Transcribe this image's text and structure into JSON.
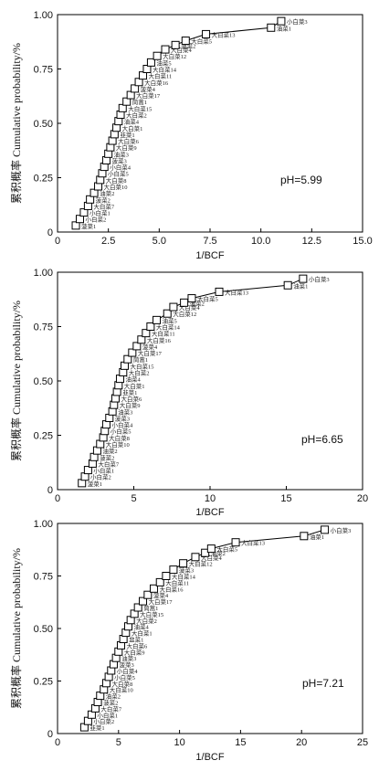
{
  "chart_data": [
    {
      "type": "scatter",
      "ph_label": "pH=5.99",
      "xlabel": "1/BCF",
      "ylabel": "累积概率 Cumulative probability/%",
      "xlim": [
        0,
        15
      ],
      "ylim": [
        0,
        1
      ],
      "xticks": [
        "0",
        "2.5",
        "5.0",
        "7.5",
        "10.0",
        "12.5",
        "15.0"
      ],
      "yticks": [
        "0",
        "0.25",
        "0.50",
        "0.75",
        "1.00"
      ],
      "curve": "fitted cumulative distribution (line)",
      "points": [
        {
          "label": "菠菜1",
          "x": 0.9,
          "y": 0.03
        },
        {
          "label": "小白菜2",
          "x": 1.1,
          "y": 0.06
        },
        {
          "label": "小白菜1",
          "x": 1.3,
          "y": 0.09
        },
        {
          "label": "大白菜7",
          "x": 1.5,
          "y": 0.12
        },
        {
          "label": "菠菜2",
          "x": 1.6,
          "y": 0.15
        },
        {
          "label": "油菜2",
          "x": 1.8,
          "y": 0.18
        },
        {
          "label": "大白菜10",
          "x": 2.0,
          "y": 0.21
        },
        {
          "label": "大白菜8",
          "x": 2.1,
          "y": 0.24
        },
        {
          "label": "小白菜5",
          "x": 2.2,
          "y": 0.27
        },
        {
          "label": "小白菜4",
          "x": 2.3,
          "y": 0.3
        },
        {
          "label": "菠菜3",
          "x": 2.4,
          "y": 0.33
        },
        {
          "label": "油菜3",
          "x": 2.5,
          "y": 0.36
        },
        {
          "label": "大白菜9",
          "x": 2.6,
          "y": 0.39
        },
        {
          "label": "大白菜6",
          "x": 2.7,
          "y": 0.42
        },
        {
          "label": "韭菜1",
          "x": 2.8,
          "y": 0.45
        },
        {
          "label": "大白菜1",
          "x": 2.9,
          "y": 0.48
        },
        {
          "label": "油菜4",
          "x": 3.0,
          "y": 0.51
        },
        {
          "label": "大白菜2",
          "x": 3.1,
          "y": 0.54
        },
        {
          "label": "大白菜15",
          "x": 3.2,
          "y": 0.57
        },
        {
          "label": "茼蒿1",
          "x": 3.4,
          "y": 0.6
        },
        {
          "label": "大白菜17",
          "x": 3.6,
          "y": 0.63
        },
        {
          "label": "菠菜4",
          "x": 3.8,
          "y": 0.66
        },
        {
          "label": "大白菜16",
          "x": 4.0,
          "y": 0.69
        },
        {
          "label": "大白菜11",
          "x": 4.2,
          "y": 0.72
        },
        {
          "label": "大白菜14",
          "x": 4.4,
          "y": 0.75
        },
        {
          "label": "油菜5",
          "x": 4.6,
          "y": 0.78
        },
        {
          "label": "大白菜12",
          "x": 4.9,
          "y": 0.81
        },
        {
          "label": "大白菜4",
          "x": 5.3,
          "y": 0.84
        },
        {
          "label": "菠菜2",
          "x": 5.8,
          "y": 0.86
        },
        {
          "label": "大白菜5",
          "x": 6.3,
          "y": 0.88
        },
        {
          "label": "大白菜13",
          "x": 7.3,
          "y": 0.91
        },
        {
          "label": "油菜1",
          "x": 10.5,
          "y": 0.94
        },
        {
          "label": "小白菜3",
          "x": 11.0,
          "y": 0.97
        }
      ]
    },
    {
      "type": "scatter",
      "ph_label": "pH=6.65",
      "xlabel": "1/BCF",
      "ylabel": "累积概率 Cumulative probability/%",
      "xlim": [
        0,
        20
      ],
      "ylim": [
        0,
        1
      ],
      "xticks": [
        "0",
        "5",
        "10",
        "15",
        "20"
      ],
      "yticks": [
        "0",
        "0.25",
        "0.50",
        "0.75",
        "1.00"
      ],
      "curve": "fitted cumulative distribution (line)",
      "points": [
        {
          "label": "菠菜1",
          "x": 1.6,
          "y": 0.03
        },
        {
          "label": "小白菜2",
          "x": 1.8,
          "y": 0.06
        },
        {
          "label": "小白菜1",
          "x": 2.0,
          "y": 0.09
        },
        {
          "label": "大白菜7",
          "x": 2.3,
          "y": 0.12
        },
        {
          "label": "菠菜2",
          "x": 2.4,
          "y": 0.15
        },
        {
          "label": "油菜2",
          "x": 2.6,
          "y": 0.18
        },
        {
          "label": "大白菜10",
          "x": 2.8,
          "y": 0.21
        },
        {
          "label": "大白菜8",
          "x": 3.0,
          "y": 0.24
        },
        {
          "label": "小白菜5",
          "x": 3.1,
          "y": 0.27
        },
        {
          "label": "小白菜4",
          "x": 3.2,
          "y": 0.3
        },
        {
          "label": "菠菜3",
          "x": 3.4,
          "y": 0.33
        },
        {
          "label": "油菜3",
          "x": 3.6,
          "y": 0.36
        },
        {
          "label": "大白菜9",
          "x": 3.7,
          "y": 0.39
        },
        {
          "label": "大白菜6",
          "x": 3.8,
          "y": 0.42
        },
        {
          "label": "韭菜1",
          "x": 3.9,
          "y": 0.45
        },
        {
          "label": "大白菜1",
          "x": 4.0,
          "y": 0.48
        },
        {
          "label": "油菜4",
          "x": 4.1,
          "y": 0.51
        },
        {
          "label": "大白菜2",
          "x": 4.3,
          "y": 0.54
        },
        {
          "label": "大白菜15",
          "x": 4.4,
          "y": 0.57
        },
        {
          "label": "茼蒿1",
          "x": 4.6,
          "y": 0.6
        },
        {
          "label": "大白菜17",
          "x": 4.9,
          "y": 0.63
        },
        {
          "label": "菠菜4",
          "x": 5.2,
          "y": 0.66
        },
        {
          "label": "大白菜16",
          "x": 5.5,
          "y": 0.69
        },
        {
          "label": "大白菜11",
          "x": 5.8,
          "y": 0.72
        },
        {
          "label": "大白菜14",
          "x": 6.1,
          "y": 0.75
        },
        {
          "label": "油菜5",
          "x": 6.5,
          "y": 0.78
        },
        {
          "label": "大白菜12",
          "x": 7.2,
          "y": 0.81
        },
        {
          "label": "大白菜4",
          "x": 7.6,
          "y": 0.84
        },
        {
          "label": "菠菜2",
          "x": 8.3,
          "y": 0.86
        },
        {
          "label": "大白菜5",
          "x": 8.8,
          "y": 0.88
        },
        {
          "label": "大白菜13",
          "x": 10.6,
          "y": 0.91
        },
        {
          "label": "油菜1",
          "x": 15.1,
          "y": 0.94
        },
        {
          "label": "小白菜3",
          "x": 16.1,
          "y": 0.97
        }
      ]
    },
    {
      "type": "scatter",
      "ph_label": "pH=7.21",
      "xlabel": "1/BCF",
      "ylabel": "累积概率 Cumulative probability/%",
      "xlim": [
        0,
        25
      ],
      "ylim": [
        0,
        1
      ],
      "xticks": [
        "0",
        "5",
        "10",
        "15",
        "20",
        "25"
      ],
      "yticks": [
        "0",
        "0.25",
        "0.50",
        "0.75",
        "1.00"
      ],
      "curve": "fitted cumulative distribution (line)",
      "points": [
        {
          "label": "韭菜1",
          "x": 2.2,
          "y": 0.03
        },
        {
          "label": "小白菜2",
          "x": 2.5,
          "y": 0.06
        },
        {
          "label": "小白菜1",
          "x": 2.8,
          "y": 0.09
        },
        {
          "label": "大白菜7",
          "x": 3.1,
          "y": 0.12
        },
        {
          "label": "菠菜2",
          "x": 3.3,
          "y": 0.15
        },
        {
          "label": "油菜2",
          "x": 3.5,
          "y": 0.18
        },
        {
          "label": "大白菜10",
          "x": 3.8,
          "y": 0.21
        },
        {
          "label": "大白菜8",
          "x": 4.0,
          "y": 0.24
        },
        {
          "label": "小白菜5",
          "x": 4.2,
          "y": 0.27
        },
        {
          "label": "小白菜4",
          "x": 4.4,
          "y": 0.3
        },
        {
          "label": "菠菜3",
          "x": 4.6,
          "y": 0.33
        },
        {
          "label": "油菜3",
          "x": 4.8,
          "y": 0.36
        },
        {
          "label": "大白菜9",
          "x": 5.0,
          "y": 0.39
        },
        {
          "label": "大白菜6",
          "x": 5.2,
          "y": 0.42
        },
        {
          "label": "韭菜1",
          "x": 5.4,
          "y": 0.45
        },
        {
          "label": "大白菜1",
          "x": 5.6,
          "y": 0.48
        },
        {
          "label": "油菜4",
          "x": 5.8,
          "y": 0.51
        },
        {
          "label": "大白菜2",
          "x": 6.0,
          "y": 0.54
        },
        {
          "label": "大白菜15",
          "x": 6.3,
          "y": 0.57
        },
        {
          "label": "茼蒿1",
          "x": 6.6,
          "y": 0.6
        },
        {
          "label": "大白菜17",
          "x": 7.0,
          "y": 0.63
        },
        {
          "label": "菠菜4",
          "x": 7.4,
          "y": 0.66
        },
        {
          "label": "大白菜16",
          "x": 7.9,
          "y": 0.69
        },
        {
          "label": "大白菜11",
          "x": 8.4,
          "y": 0.72
        },
        {
          "label": "大白菜14",
          "x": 8.9,
          "y": 0.75
        },
        {
          "label": "菠菜3",
          "x": 9.5,
          "y": 0.78
        },
        {
          "label": "大白菜12",
          "x": 10.3,
          "y": 0.81
        },
        {
          "label": "大白菜4",
          "x": 11.3,
          "y": 0.84
        },
        {
          "label": "油菜2",
          "x": 12.1,
          "y": 0.86
        },
        {
          "label": "大白菜5",
          "x": 12.6,
          "y": 0.88
        },
        {
          "label": "大白菜13",
          "x": 14.6,
          "y": 0.91
        },
        {
          "label": "油菜1",
          "x": 20.2,
          "y": 0.94
        },
        {
          "label": "小白菜3",
          "x": 21.9,
          "y": 0.97
        }
      ]
    }
  ]
}
